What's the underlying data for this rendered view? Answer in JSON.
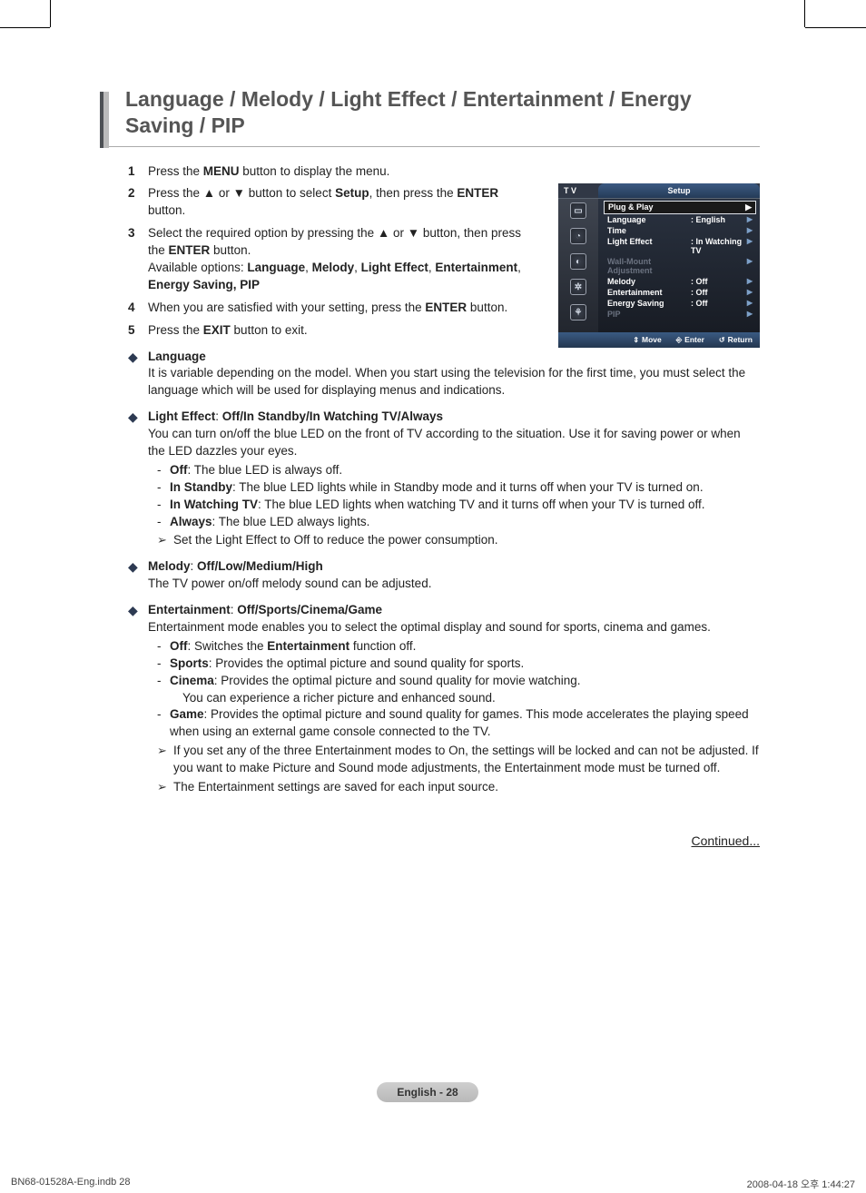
{
  "heading": "Language / Melody / Light Effect / Entertainment / Energy Saving / PIP",
  "steps": {
    "s1_num": "1",
    "s1_a": "Press the ",
    "s1_b": "MENU",
    "s1_c": " button to display the menu.",
    "s2_num": "2",
    "s2_a": "Press the ▲ or ▼ button to select ",
    "s2_b": "Setup",
    "s2_c": ", then press the ",
    "s2_d": "ENTER",
    "s2_e": " button.",
    "s3_num": "3",
    "s3_a": "Select the required option by pressing the ▲ or ▼ button, then press the ",
    "s3_b": "ENTER",
    "s3_c": " button.",
    "s3_opts_a": "Available options: ",
    "s3_opts_b": "Language",
    "s3_opts_c": ", ",
    "s3_opts_d": "Melody",
    "s3_opts_e": ", ",
    "s3_opts_f": "Light Effect",
    "s3_opts_g": ", ",
    "s3_opts_h": "Entertainment",
    "s3_opts_i": ", ",
    "s3_opts_j": "Energy Saving, PIP",
    "s4_num": "4",
    "s4_a": "When you are satisfied with your setting, press the ",
    "s4_b": "ENTER",
    "s4_c": " button.",
    "s5_num": "5",
    "s5_a": "Press the ",
    "s5_b": "EXIT",
    "s5_c": " button to exit."
  },
  "lang": {
    "title": "Language",
    "body": "It is variable depending on the model. When you start using the television for the first time, you must select the language which will be used for displaying menus and indications."
  },
  "light": {
    "title_a": "Light Effect",
    "title_b": ": ",
    "title_c": "Off/In Standby/In Watching TV/Always",
    "body": "You can turn on/off the blue LED on the front of TV according to the situation. Use it for saving power or when the LED dazzles your eyes.",
    "i1_a": "Off",
    "i1_b": ": The blue LED is always off.",
    "i2_a": "In Standby",
    "i2_b": ": The blue LED lights while in Standby mode and it turns off when your TV is turned on.",
    "i3_a": "In Watching TV",
    "i3_b": ": The blue LED lights when watching TV and it turns off when your TV is turned off.",
    "i4_a": "Always",
    "i4_b": ": The blue LED always lights.",
    "note": "Set the Light Effect to Off to reduce the power consumption."
  },
  "melody": {
    "title_a": "Melody",
    "title_b": ": ",
    "title_c": "Off/Low/Medium/High",
    "body": "The TV power on/off melody sound can be adjusted."
  },
  "ent": {
    "title_a": "Entertainment",
    "title_b": ": ",
    "title_c": "Off/Sports/Cinema/Game",
    "body": "Entertainment mode enables you to select the optimal display and sound for sports, cinema and games.",
    "i1_a": "Off",
    "i1_b": ": Switches the ",
    "i1_c": "Entertainment",
    "i1_d": " function off.",
    "i2_a": "Sports",
    "i2_b": ": Provides the optimal picture and sound quality for sports.",
    "i3_a": "Cinema",
    "i3_b": ": Provides the optimal picture and sound quality for movie watching.",
    "i3_c": "You can experience a richer picture and enhanced sound.",
    "i4_a": "Game",
    "i4_b": ": Provides the optimal picture and sound quality for games. This mode accelerates the playing speed when using an external game console connected to the TV.",
    "n1": "If you set any of the three Entertainment modes to On, the settings will be locked and can not be adjusted. If you want to make Picture and Sound mode adjustments, the Entertainment mode must be turned off.",
    "n2": "The Entertainment settings are saved for each input source."
  },
  "continued": "Continued...",
  "footer_page": "English - 28",
  "footer_file": "BN68-01528A-Eng.indb   28",
  "footer_time": "2008-04-18   오후 1:44:27",
  "osd": {
    "tv": "T V",
    "setup": "Setup",
    "plug": "Plug & Play",
    "rows": [
      {
        "k": "Language",
        "v": ": English",
        "dim": false
      },
      {
        "k": "Time",
        "v": "",
        "dim": false
      },
      {
        "k": "Light Effect",
        "v": ": In Watching TV",
        "dim": false
      },
      {
        "k": "Wall-Mount Adjustment",
        "v": "",
        "dim": true
      },
      {
        "k": "Melody",
        "v": ": Off",
        "dim": false
      },
      {
        "k": "Entertainment",
        "v": ": Off",
        "dim": false
      },
      {
        "k": "Energy Saving",
        "v": ": Off",
        "dim": false
      },
      {
        "k": "PIP",
        "v": "",
        "dim": true
      }
    ],
    "ctl_move": "Move",
    "ctl_enter": "Enter",
    "ctl_return": "Return",
    "icons": [
      "▭",
      "◔",
      "◐",
      "✲",
      "⚘"
    ]
  }
}
